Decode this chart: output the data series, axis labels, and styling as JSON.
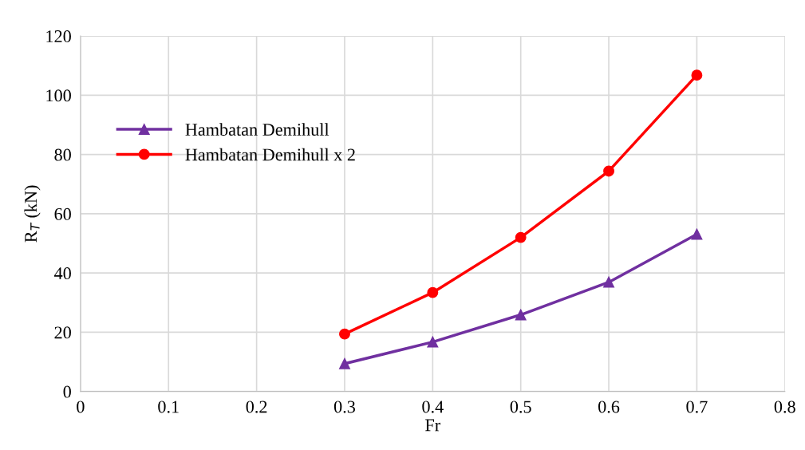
{
  "chart_data": {
    "type": "line",
    "xlabel": "Fr",
    "ylabel": "R$_{T}$ (kN)",
    "x": [
      0.3,
      0.4,
      0.5,
      0.6,
      0.7
    ],
    "series": [
      {
        "name": "Hambatan Demihull",
        "color": "#7030a0",
        "marker": "triangle",
        "values": [
          9.4,
          16.7,
          25.9,
          36.9,
          53.1
        ]
      },
      {
        "name": "Hambatan Demihull x 2",
        "color": "#ff0000",
        "marker": "circle",
        "values": [
          19.4,
          33.4,
          52.0,
          74.4,
          106.8
        ]
      }
    ],
    "xlim": [
      0,
      0.8
    ],
    "xticks": [
      0,
      0.1,
      0.2,
      0.3,
      0.4,
      0.5,
      0.6,
      0.7,
      0.8
    ],
    "ylim": [
      0,
      120
    ],
    "yticks": [
      0,
      20,
      40,
      60,
      80,
      100,
      120
    ],
    "grid": true,
    "legend": "top left",
    "line_style": "solid"
  }
}
